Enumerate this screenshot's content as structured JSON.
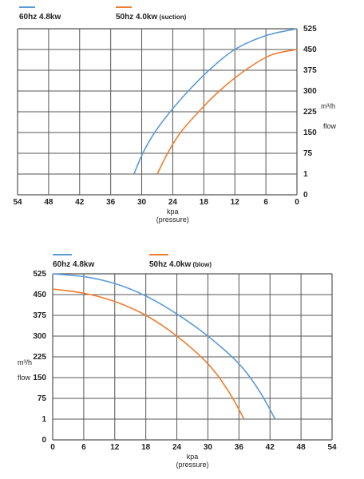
{
  "chart_data": [
    {
      "type": "line",
      "panel": "suction",
      "x_reversed": true,
      "xlim": [
        54,
        0
      ],
      "x_ticks": [
        "54",
        "48",
        "42",
        "36",
        "30",
        "24",
        "18",
        "12",
        "6",
        "0"
      ],
      "y_ticks": [
        "0",
        "1",
        "75",
        "150",
        "225",
        "300",
        "375",
        "450",
        "525"
      ],
      "y_unit": "m³/h",
      "y_name": "flow",
      "xlabel": "kpa",
      "xlabel_sub": "(pressure)",
      "legend_placement": "top",
      "series": [
        {
          "name": "60hz 4.8kw",
          "color": "#5b9bd5",
          "points": [
            [
              31.5,
              1
            ],
            [
              29.8,
              75
            ],
            [
              27.5,
              150
            ],
            [
              24.5,
              225
            ],
            [
              21,
              300
            ],
            [
              17,
              375
            ],
            [
              12,
              450
            ],
            [
              6,
              500
            ],
            [
              0,
              525
            ]
          ]
        },
        {
          "name": "50hz  4.0kw",
          "name_suffix": "(suction)",
          "color": "#ed7d31",
          "points": [
            [
              27,
              1
            ],
            [
              25,
              75
            ],
            [
              22.5,
              150
            ],
            [
              19,
              225
            ],
            [
              15,
              300
            ],
            [
              10,
              375
            ],
            [
              5,
              430
            ],
            [
              0,
              450
            ]
          ]
        }
      ]
    },
    {
      "type": "line",
      "panel": "blow",
      "x_reversed": false,
      "xlim": [
        0,
        54
      ],
      "x_ticks": [
        "0",
        "6",
        "12",
        "18",
        "24",
        "30",
        "36",
        "42",
        "48",
        "54"
      ],
      "y_ticks": [
        "0",
        "1",
        "75",
        "150",
        "225",
        "300",
        "375",
        "450",
        "525"
      ],
      "y_unit": "m³/h",
      "y_name": "flow",
      "xlabel": "kpa",
      "xlabel_sub": "(pressure)",
      "legend_placement": "top",
      "series": [
        {
          "name": "60hz 4.8kw",
          "color": "#5b9bd5",
          "points": [
            [
              0,
              525
            ],
            [
              6,
              515
            ],
            [
              12,
              490
            ],
            [
              18,
              445
            ],
            [
              24,
              380
            ],
            [
              30,
              300
            ],
            [
              36,
              200
            ],
            [
              40,
              100
            ],
            [
              43,
              1
            ]
          ]
        },
        {
          "name": "50hz  4.0kw",
          "name_suffix": "(blow)",
          "color": "#ed7d31",
          "points": [
            [
              0,
              470
            ],
            [
              6,
              455
            ],
            [
              12,
              425
            ],
            [
              18,
              375
            ],
            [
              24,
              300
            ],
            [
              30,
              200
            ],
            [
              34,
              100
            ],
            [
              37,
              1
            ]
          ]
        }
      ]
    }
  ]
}
